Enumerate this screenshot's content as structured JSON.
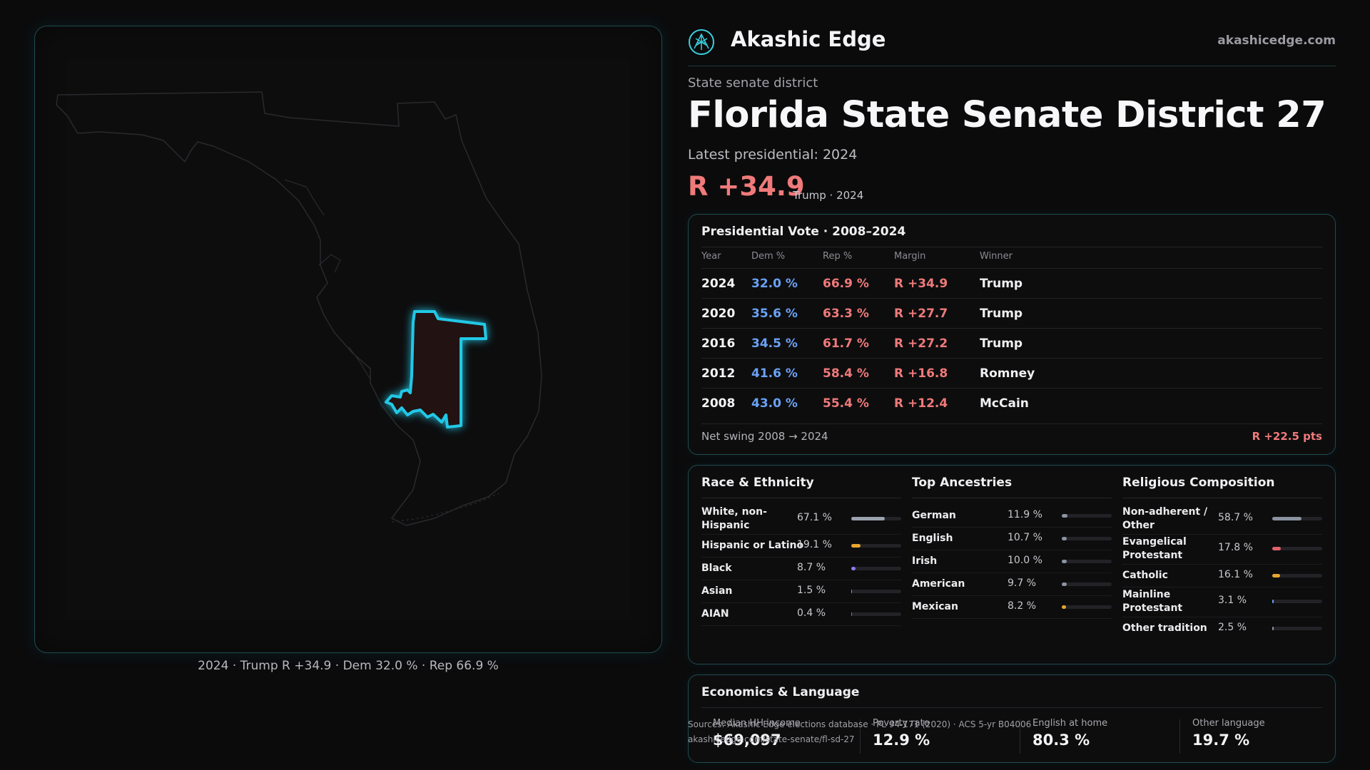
{
  "map": {
    "caption": "2024 · Trump R +34.9 · Dem 32.0 % · Rep 66.9 %",
    "district_color": "#22c8e6"
  },
  "brand": {
    "name": "Akashic Edge",
    "url": "akashicedge.com"
  },
  "header": {
    "kicker": "State senate district",
    "title": "Florida State Senate District 27",
    "latest": "Latest presidential: 2024",
    "margin": "R +34.9",
    "margin_sub": "Trump · 2024"
  },
  "presidential": {
    "title": "Presidential Vote · 2008–2024",
    "headers": {
      "year": "Year",
      "dem": "Dem %",
      "rep": "Rep %",
      "margin": "Margin",
      "winner": "Winner"
    },
    "rows": [
      {
        "year": "2024",
        "dem": "32.0 %",
        "rep": "66.9 %",
        "margin": "R +34.9",
        "winner": "Trump"
      },
      {
        "year": "2020",
        "dem": "35.6 %",
        "rep": "63.3 %",
        "margin": "R +27.7",
        "winner": "Trump"
      },
      {
        "year": "2016",
        "dem": "34.5 %",
        "rep": "61.7 %",
        "margin": "R +27.2",
        "winner": "Trump"
      },
      {
        "year": "2012",
        "dem": "41.6 %",
        "rep": "58.4 %",
        "margin": "R +16.8",
        "winner": "Romney"
      },
      {
        "year": "2008",
        "dem": "43.0 %",
        "rep": "55.4 %",
        "margin": "R +12.4",
        "winner": "McCain"
      }
    ],
    "swing_label": "Net swing 2008 → 2024",
    "swing_value": "R +22.5 pts"
  },
  "race": {
    "title": "Race & Ethnicity",
    "items": [
      {
        "label": "White, non-Hispanic",
        "pct": "67.1 %",
        "value": 67.1,
        "color": "#9aa3ad"
      },
      {
        "label": "Hispanic or Latino",
        "pct": "19.1 %",
        "value": 19.1,
        "color": "#e6a52e"
      },
      {
        "label": "Black",
        "pct": "8.7 %",
        "value": 8.7,
        "color": "#8a7cf0"
      },
      {
        "label": "Asian",
        "pct": "1.5 %",
        "value": 1.5,
        "color": "#3fbf9a"
      },
      {
        "label": "AIAN",
        "pct": "0.4 %",
        "value": 0.4,
        "color": "#c06a4a"
      }
    ]
  },
  "ancestry": {
    "title": "Top Ancestries",
    "items": [
      {
        "label": "German",
        "pct": "11.9 %",
        "value": 11.9,
        "color": "#8b93a1"
      },
      {
        "label": "English",
        "pct": "10.7 %",
        "value": 10.7,
        "color": "#8b93a1"
      },
      {
        "label": "Irish",
        "pct": "10.0 %",
        "value": 10.0,
        "color": "#8b93a1"
      },
      {
        "label": "American",
        "pct": "9.7 %",
        "value": 9.7,
        "color": "#8b93a1"
      },
      {
        "label": "Mexican",
        "pct": "8.2 %",
        "value": 8.2,
        "color": "#e6a52e"
      }
    ]
  },
  "religion": {
    "title": "Religious Composition",
    "items": [
      {
        "label": "Non-adherent / Other",
        "pct": "58.7 %",
        "value": 58.7,
        "color": "#8b93a1"
      },
      {
        "label": "Evangelical Protestant",
        "pct": "17.8 %",
        "value": 17.8,
        "color": "#e0626a"
      },
      {
        "label": "Catholic",
        "pct": "16.1 %",
        "value": 16.1,
        "color": "#e6a52e"
      },
      {
        "label": "Mainline Protestant",
        "pct": "3.1 %",
        "value": 3.1,
        "color": "#6aa2f5"
      },
      {
        "label": "Other tradition",
        "pct": "2.5 %",
        "value": 2.5,
        "color": "#8b93a1"
      }
    ]
  },
  "economics": {
    "title": "Economics & Language",
    "stats": [
      {
        "label": "Median HH income",
        "value": "$69,097"
      },
      {
        "label": "Poverty rate",
        "value": "12.9 %"
      },
      {
        "label": "English at home",
        "value": "80.3 %"
      },
      {
        "label": "Other language",
        "value": "19.7 %"
      }
    ]
  },
  "sources": {
    "line1": "Sources: Akashic Edge elections database · PL 94-171 (2020) · ACS 5-yr B04006",
    "line2": "akashicedge.com/state-senate/fl-sd-27"
  }
}
